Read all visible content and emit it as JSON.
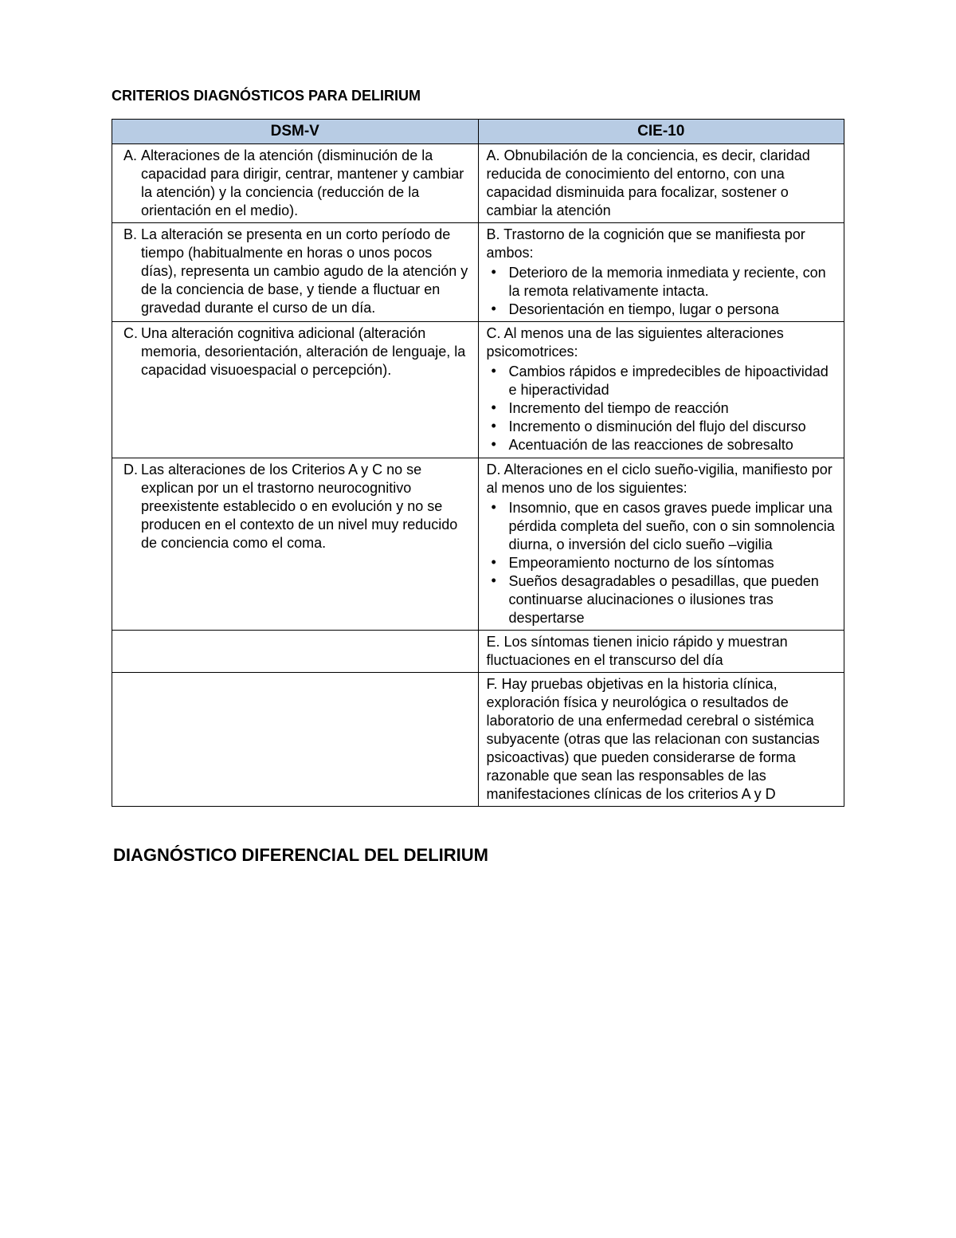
{
  "colors": {
    "header_bg": "#b8cce4",
    "border": "#000000",
    "text": "#000000",
    "page_bg": "#ffffff"
  },
  "typography": {
    "title_fontsize": 18,
    "header_fontsize": 19,
    "cell_fontsize": 18,
    "subtitle_fontsize": 22,
    "font_family": "Arial"
  },
  "title": "CRITERIOS DIAGNÓSTICOS PARA DELIRIUM",
  "table": {
    "columns": [
      "DSM-V",
      "CIE-10"
    ],
    "rows": [
      {
        "left": {
          "marker": "A.",
          "text": "Alteraciones de la atención (disminución de la capacidad para dirigir, centrar, mantener y cambiar la atención) y la conciencia (reducción de la orientación en el medio)."
        },
        "right": {
          "text": "A. Obnubilación de la conciencia, es decir, claridad reducida de conocimiento del entorno, con una capacidad disminuida para focalizar, sostener o cambiar la atención",
          "bullets": []
        }
      },
      {
        "left": {
          "marker": "B.",
          "text": "La alteración se presenta en un corto período de tiempo (habitualmente en horas o unos pocos días), representa un cambio agudo de la atención y de la conciencia de base, y tiende a fluctuar en gravedad durante el curso de un día."
        },
        "right": {
          "text": "B. Trastorno de la cognición que se manifiesta por ambos:",
          "bullets": [
            "Deterioro de la memoria inmediata y reciente, con la remota relativamente intacta.",
            "Desorientación en tiempo, lugar o persona"
          ]
        }
      },
      {
        "left": {
          "marker": "C.",
          "text": "Una alteración cognitiva adicional (alteración memoria, desorientación, alteración de lenguaje, la capacidad visuoespacial o percepción)."
        },
        "right": {
          "text": "C. Al menos una de las siguientes alteraciones psicomotrices:",
          "bullets": [
            "Cambios rápidos e impredecibles de hipoactividad e hiperactividad",
            "Incremento del tiempo de reacción",
            "Incremento o disminución del flujo del discurso",
            "Acentuación de las reacciones de sobresalto"
          ]
        }
      },
      {
        "left": {
          "marker": "D.",
          "text": "Las alteraciones de los Criterios A y C no se explican por un el trastorno neurocognitivo preexistente establecido o en evolución y no se producen en el contexto de un nivel muy reducido de conciencia como el coma."
        },
        "right": {
          "text": "D. Alteraciones en el  ciclo sueño-vigilia, manifiesto por al menos uno de los siguientes:",
          "bullets": [
            "Insomnio, que en casos graves puede implicar una pérdida completa del sueño, con o sin somnolencia diurna, o inversión del ciclo sueño –vigilia",
            "Empeoramiento nocturno de los síntomas",
            "Sueños desagradables o pesadillas, que pueden continuarse alucinaciones o ilusiones tras despertarse"
          ]
        }
      },
      {
        "left": {
          "marker": "",
          "text": ""
        },
        "right": {
          "text": "E.  Los síntomas tienen inicio rápido y muestran fluctuaciones en el transcurso del día",
          "bullets": []
        }
      },
      {
        "left": {
          "marker": "",
          "text": ""
        },
        "right": {
          "text": "F. Hay pruebas objetivas en la historia clínica, exploración física y neurológica o resultados de laboratorio de una enfermedad cerebral o sistémica subyacente (otras que las relacionan con sustancias psicoactivas) que pueden considerarse de forma razonable que sean las responsables de las manifestaciones clínicas de los criterios A y D",
          "bullets": []
        }
      }
    ]
  },
  "subtitle": "DIAGNÓSTICO DIFERENCIAL DEL DELIRIUM"
}
